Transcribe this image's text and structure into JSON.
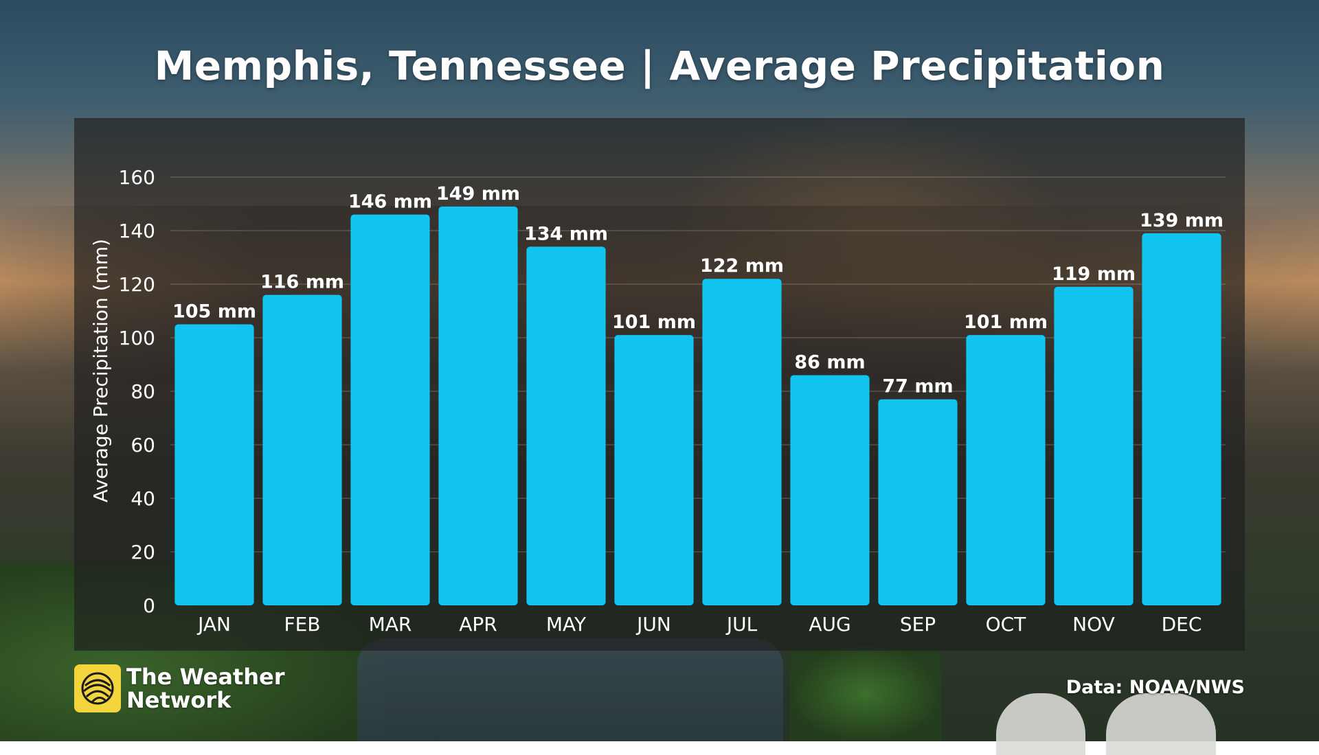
{
  "header": {
    "title": "Memphis, Tennessee | Average Precipitation"
  },
  "chart_data": {
    "type": "bar",
    "title": "Memphis, Tennessee | Average Precipitation",
    "xlabel": "",
    "ylabel": "Average Precipitation (mm)",
    "ylim": [
      0,
      160
    ],
    "yticks": [
      0,
      20,
      40,
      60,
      80,
      100,
      120,
      140,
      160
    ],
    "categories": [
      "JAN",
      "FEB",
      "MAR",
      "APR",
      "MAY",
      "JUN",
      "JUL",
      "AUG",
      "SEP",
      "OCT",
      "NOV",
      "DEC"
    ],
    "values": [
      105,
      116,
      146,
      149,
      134,
      101,
      122,
      86,
      77,
      101,
      119,
      139
    ],
    "value_labels": [
      "105 mm",
      "116 mm",
      "146 mm",
      "149 mm",
      "134 mm",
      "101 mm",
      "122 mm",
      "86 mm",
      "77 mm",
      "101 mm",
      "119 mm",
      "139 mm"
    ],
    "grid": true,
    "bar_color": "#12c4f0"
  },
  "footer": {
    "logo_line1": "The Weather",
    "logo_line2": "Network",
    "logo_icon": "globe-icon",
    "logo_color": "#f2d53c",
    "source": "Data: NOAA/NWS"
  }
}
